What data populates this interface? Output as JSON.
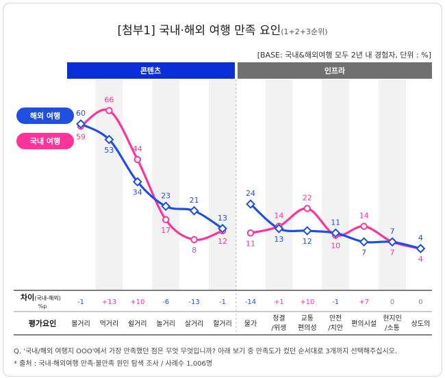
{
  "title": "[첨부1] 국내·해외 여행 만족 요인",
  "title_sub": "(1+2+3순위)",
  "base_note": "[BASE: 국내&해외여행 모두 2년 내 경험자, 단위 : %]",
  "groups": [
    {
      "label": "콘텐츠",
      "color": "#0a2ed8"
    },
    {
      "label": "인프라",
      "color": "#707070"
    }
  ],
  "legend": [
    {
      "label": "해외 여행",
      "color": "#1e4fe0"
    },
    {
      "label": "국내 여행",
      "color": "#ff3399"
    }
  ],
  "diff_label_main": "차이",
  "diff_label_paren": "(국내-해외)",
  "diff_label_unit": "%p",
  "row_label": "평가요인",
  "question": "Q. '국내/해외 여행지 OOO'에서 가장 만족했던 점은 무엇 무엇입니까? 아래 보기 중 만족도가 컸던 순서대로 3개까지 선택해주십시오.",
  "source": "* 출처 : 국내·해외여행 만족·불만족 원인 탐색 조사 / 사례수 1,006명",
  "chart_data": {
    "type": "line",
    "categories": [
      "볼거리",
      "먹거리",
      "쉴거리",
      "놀거리",
      "살거리",
      "할거리",
      "물가",
      "청결/위생",
      "교통편의성",
      "안전/치안",
      "편의시설",
      "현지인/소통",
      "상도의"
    ],
    "series": [
      {
        "name": "해외 여행",
        "color": "#1e4fe0",
        "values": [
          60,
          53,
          34,
          23,
          21,
          13,
          24,
          13,
          12,
          11,
          7,
          7,
          4
        ]
      },
      {
        "name": "국내 여행",
        "color": "#ff3399",
        "values": [
          59,
          66,
          44,
          17,
          8,
          12,
          11,
          14,
          22,
          10,
          14,
          7,
          4
        ]
      }
    ],
    "diff": [
      "-1",
      "+13",
      "+10",
      "-6",
      "-13",
      "-1",
      "-14",
      "+1",
      "+10",
      "-1",
      "+7",
      "0",
      "0"
    ],
    "ylim": [
      0,
      70
    ]
  }
}
